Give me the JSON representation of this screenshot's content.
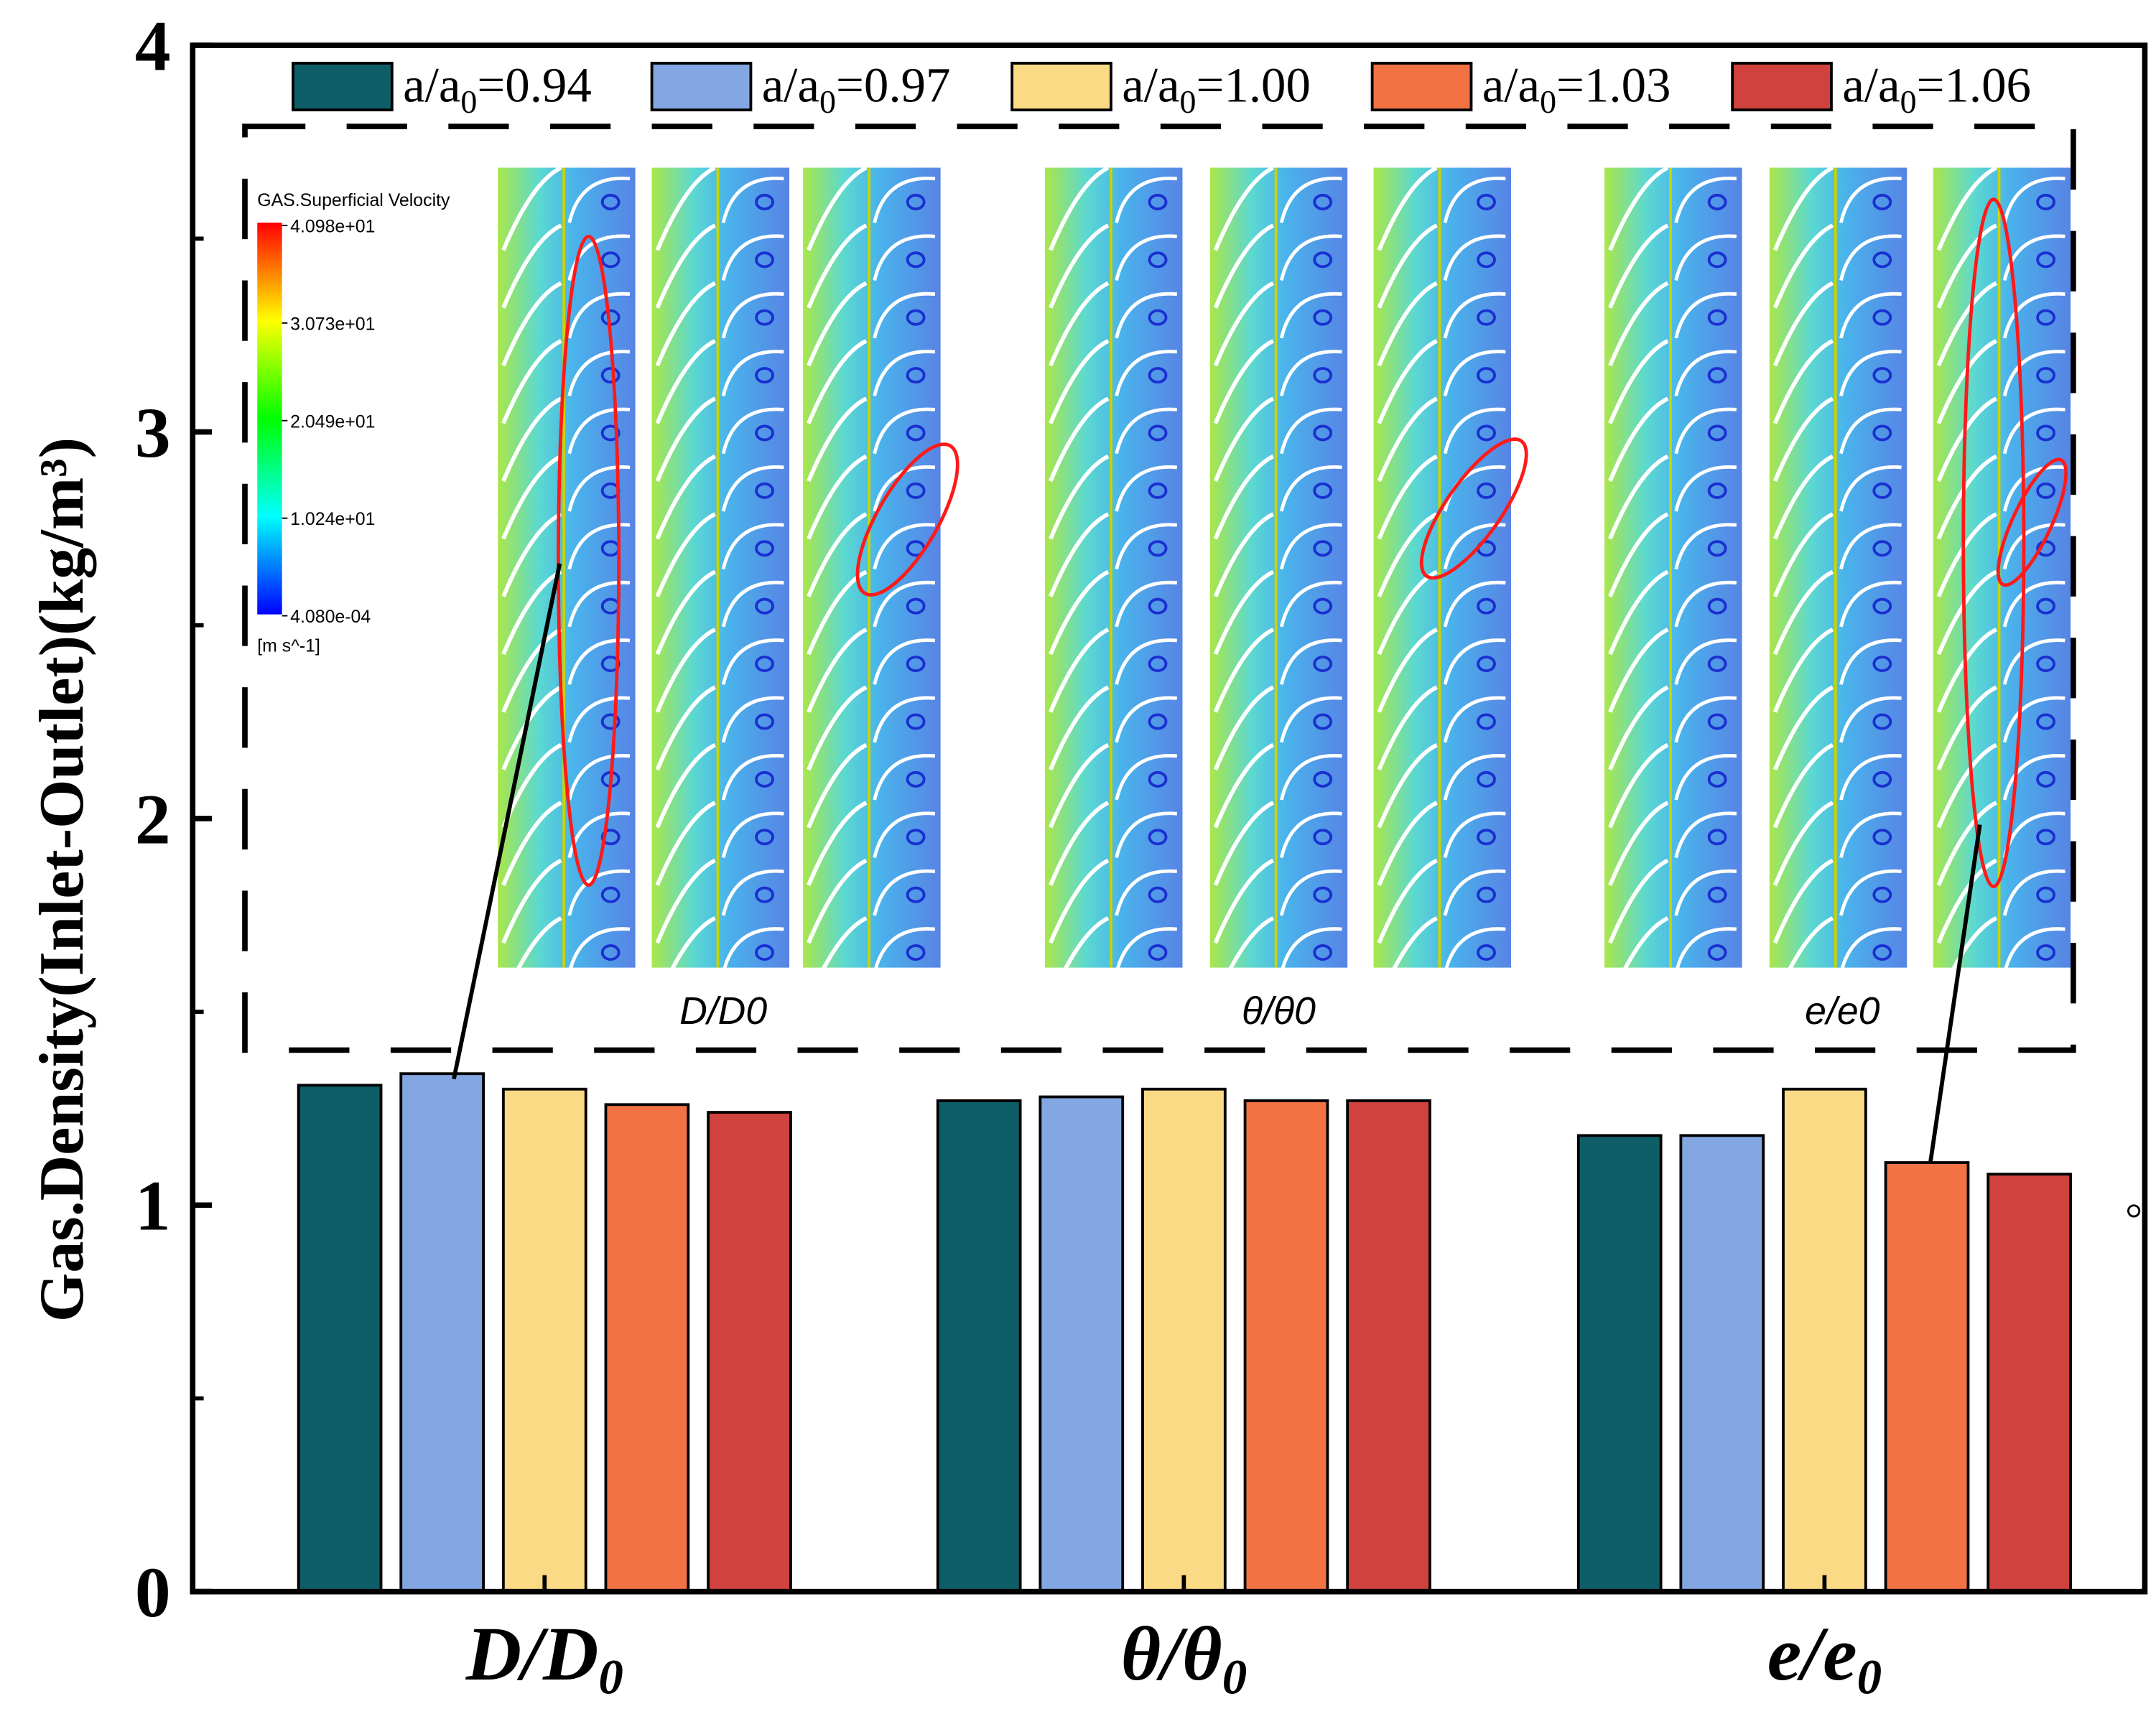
{
  "chart_data": {
    "type": "bar",
    "title": "",
    "xlabel": "",
    "ylabel": "Gas.Density(Inlet-Outlet)(kg/m³)",
    "ylim": [
      0,
      4
    ],
    "yticks": [
      "0",
      "1",
      "2",
      "3",
      "4"
    ],
    "categories": [
      "D/D0",
      "θ/θ0",
      "e/e0"
    ],
    "series": [
      {
        "name": "a/a0=0.94",
        "color": "#0e5e68",
        "values": [
          1.31,
          1.27,
          1.18
        ]
      },
      {
        "name": "a/a0=0.97",
        "color": "#82a7e2",
        "values": [
          1.34,
          1.28,
          1.18
        ]
      },
      {
        "name": "a/a0=1.00",
        "color": "#fbda85",
        "values": [
          1.3,
          1.3,
          1.3
        ]
      },
      {
        "name": "a/a0=1.03",
        "color": "#f37244",
        "values": [
          1.26,
          1.27,
          1.11
        ]
      },
      {
        "name": "a/a0=1.06",
        "color": "#cf423d",
        "values": [
          1.24,
          1.27,
          1.08
        ]
      }
    ],
    "legend_placement": "top",
    "inset": {
      "colorbar_title": "GAS.Superficial Velocity",
      "colorbar_ticks": [
        "4.098e+01",
        "3.073e+01",
        "2.049e+01",
        "1.024e+01",
        "4.080e-04"
      ],
      "colorbar_unit": "[m s^-1]",
      "panel_labels": [
        "D/D0",
        "θ/θ0",
        "e/e0"
      ]
    }
  }
}
